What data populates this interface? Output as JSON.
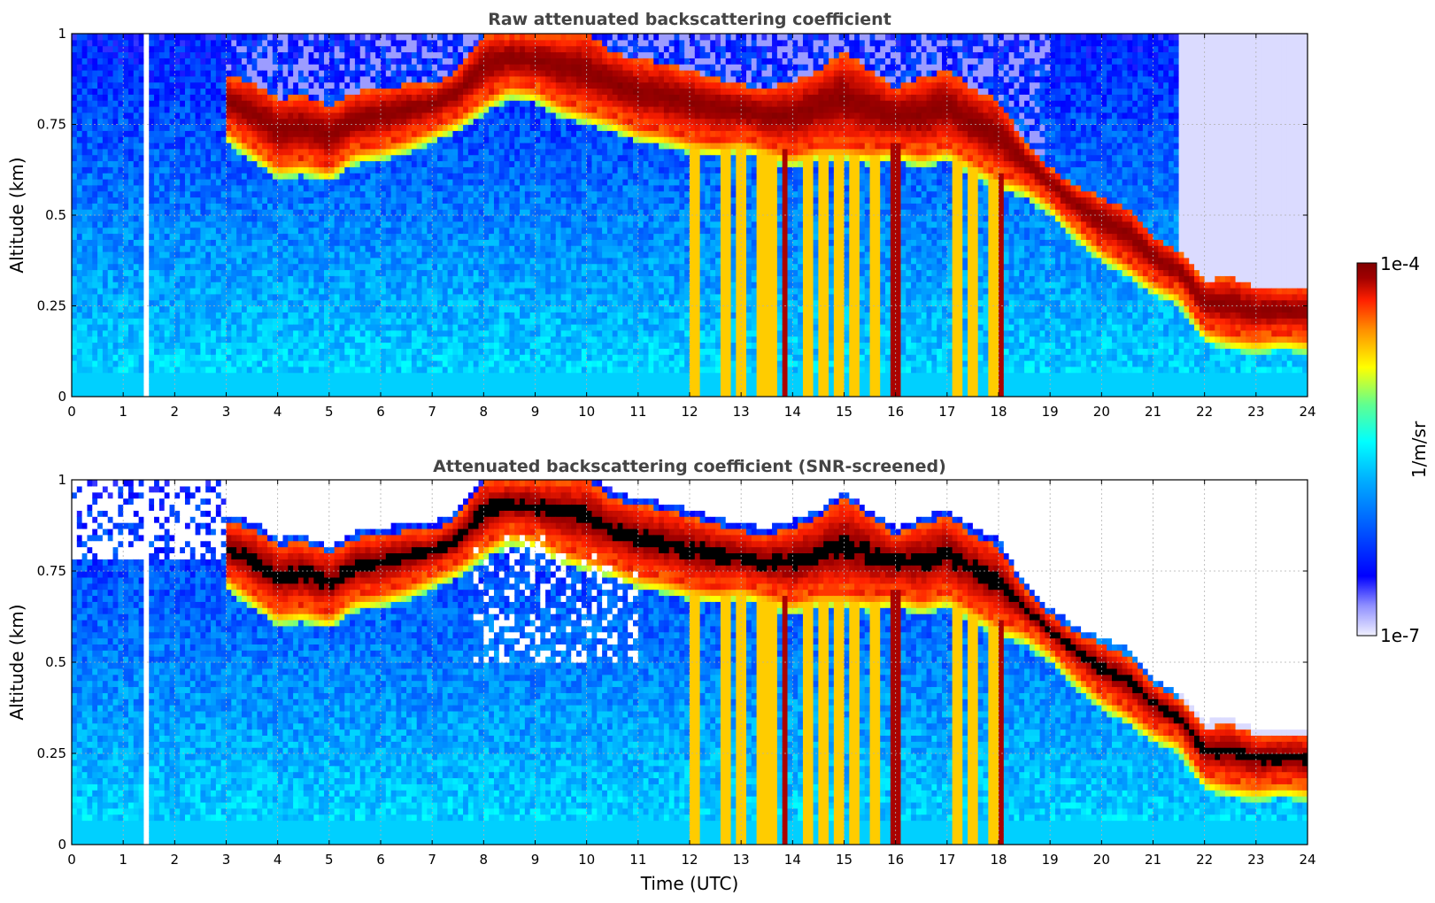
{
  "chart_data": [
    {
      "type": "heatmap",
      "title": "Raw attenuated backscattering coefficient",
      "xlabel": "",
      "ylabel": "Altitude (km)",
      "xlim": [
        0,
        24
      ],
      "ylim": [
        0,
        1
      ],
      "x_ticks": [
        "0",
        "1",
        "2",
        "3",
        "4",
        "5",
        "6",
        "7",
        "8",
        "9",
        "10",
        "11",
        "12",
        "13",
        "14",
        "15",
        "16",
        "17",
        "18",
        "19",
        "20",
        "21",
        "22",
        "23",
        "24"
      ],
      "y_ticks": [
        "0",
        "0.25",
        "0.5",
        "0.75",
        "1"
      ],
      "grid": true,
      "data_gap_hours": [
        1.45,
        1.55
      ],
      "cloud_layer": {
        "time_utc": [
          3,
          3.5,
          4,
          4.5,
          5,
          5.5,
          6,
          6.5,
          7,
          7.5,
          8,
          8.5,
          9,
          9.5,
          10,
          10.5,
          11,
          11.5,
          12,
          12.5,
          13,
          13.5,
          14,
          14.5,
          15,
          15.5,
          16,
          16.5,
          17,
          17.5,
          18,
          18.5,
          19,
          19.5,
          20,
          20.5,
          21,
          21.5,
          22,
          22.5,
          23,
          23.5,
          24
        ],
        "base_km": [
          0.75,
          0.7,
          0.65,
          0.66,
          0.64,
          0.69,
          0.7,
          0.72,
          0.75,
          0.78,
          0.83,
          0.87,
          0.86,
          0.82,
          0.8,
          0.78,
          0.75,
          0.74,
          0.72,
          0.71,
          0.72,
          0.7,
          0.68,
          0.7,
          0.7,
          0.69,
          0.7,
          0.68,
          0.7,
          0.66,
          0.62,
          0.6,
          0.55,
          0.48,
          0.42,
          0.38,
          0.33,
          0.3,
          0.2,
          0.18,
          0.17,
          0.18,
          0.17
        ],
        "top_km": [
          0.88,
          0.87,
          0.82,
          0.83,
          0.8,
          0.84,
          0.85,
          0.86,
          0.86,
          0.9,
          1.0,
          1.0,
          1.0,
          1.0,
          1.0,
          0.95,
          0.93,
          0.92,
          0.9,
          0.88,
          0.86,
          0.85,
          0.87,
          0.9,
          0.95,
          0.9,
          0.85,
          0.88,
          0.9,
          0.85,
          0.82,
          0.7,
          0.63,
          0.58,
          0.55,
          0.52,
          0.44,
          0.4,
          0.32,
          0.33,
          0.3,
          0.3,
          0.3
        ]
      },
      "precipitation_shafts_utc": [
        12.1,
        12.7,
        13.0,
        13.4,
        13.6,
        13.85,
        14.3,
        14.6,
        14.9,
        15.2,
        15.6,
        15.95,
        16.05,
        17.2,
        17.5,
        17.9,
        18.05
      ]
    },
    {
      "type": "heatmap",
      "title": "Attenuated backscattering coefficient (SNR-screened)",
      "xlabel": "Time (UTC)",
      "ylabel": "Altitude (km)",
      "xlim": [
        0,
        24
      ],
      "ylim": [
        0,
        1
      ],
      "x_ticks": [
        "0",
        "1",
        "2",
        "3",
        "4",
        "5",
        "6",
        "7",
        "8",
        "9",
        "10",
        "11",
        "12",
        "13",
        "14",
        "15",
        "16",
        "17",
        "18",
        "19",
        "20",
        "21",
        "22",
        "23",
        "24"
      ],
      "y_ticks": [
        "0",
        "0.25",
        "0.5",
        "0.75",
        "1"
      ],
      "grid": true,
      "saturated_color": "#000000",
      "screened_color": "#ffffff"
    }
  ],
  "colorbar": {
    "label": "1/m/sr",
    "max_label": "1e-4",
    "min_label": "1e-7",
    "range": [
      1e-07,
      0.0001
    ],
    "scale": "log",
    "colormap": "jet",
    "colormap_stops": [
      "#f0f0ff",
      "#9090ff",
      "#0000ff",
      "#0060ff",
      "#00b0ff",
      "#00ffff",
      "#60ff90",
      "#ffff00",
      "#ff9000",
      "#ff2000",
      "#a00000",
      "#800000"
    ]
  },
  "colors": {
    "background_blue": "#1040f0",
    "cloud_core": "#8b0000",
    "gridline": "#b0b0b0",
    "title_text": "#444444"
  }
}
